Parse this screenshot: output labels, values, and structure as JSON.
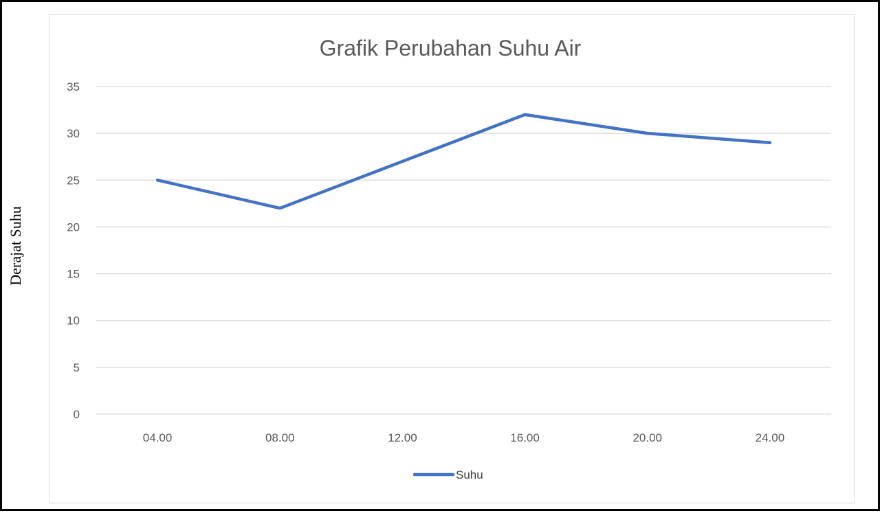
{
  "chart_data": {
    "type": "line",
    "title": "Grafik Perubahan Suhu Air",
    "xlabel": "",
    "ylabel": "Derajat Suhu",
    "categories": [
      "04.00",
      "08.00",
      "12.00",
      "16.00",
      "20.00",
      "24.00"
    ],
    "series": [
      {
        "name": "Suhu",
        "values": [
          25,
          22,
          27,
          32,
          30,
          29
        ],
        "color": "#4472c4"
      }
    ],
    "ylim": [
      0,
      35
    ],
    "yticks": [
      0,
      5,
      10,
      15,
      20,
      25,
      30,
      35
    ],
    "grid": true,
    "legend_position": "bottom"
  }
}
